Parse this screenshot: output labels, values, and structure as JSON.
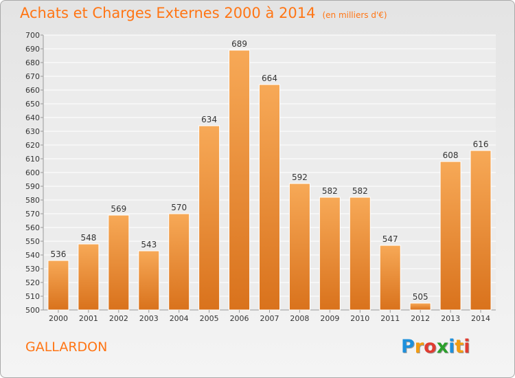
{
  "header": {
    "title": "Achats et Charges Externes 2000 à 2014",
    "subtitle": "(en milliers d'€)"
  },
  "footer": {
    "commune": "GALLARDON",
    "logo_text": "Proxiti",
    "logo_colors": [
      "#1e90dc",
      "#f39c12",
      "#e03c31",
      "#2ca02c",
      "#1e90dc",
      "#f39c12",
      "#e03c31"
    ]
  },
  "colors": {
    "bar_top": "#f7a957",
    "bar_bottom": "#d9721c",
    "title": "#ff7514"
  },
  "chart_data": {
    "type": "bar",
    "categories": [
      "2000",
      "2001",
      "2002",
      "2003",
      "2004",
      "2005",
      "2006",
      "2007",
      "2008",
      "2009",
      "2010",
      "2011",
      "2012",
      "2013",
      "2014"
    ],
    "values": [
      536,
      548,
      569,
      543,
      570,
      634,
      689,
      664,
      592,
      582,
      582,
      547,
      505,
      608,
      616
    ],
    "ylim": [
      500,
      700
    ],
    "yticks": [
      500,
      510,
      520,
      530,
      540,
      550,
      560,
      570,
      580,
      590,
      600,
      610,
      620,
      630,
      640,
      650,
      660,
      670,
      680,
      690,
      700
    ],
    "grid": true,
    "data_labels": true
  }
}
